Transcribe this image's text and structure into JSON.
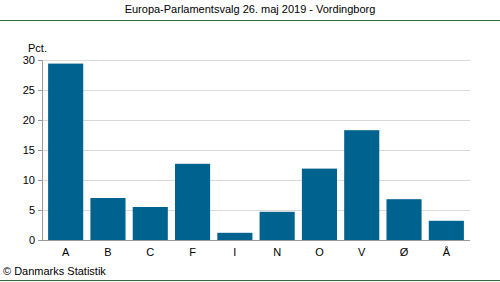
{
  "chart_data": {
    "type": "bar",
    "title": "Europa-Parlamentsvalg 26. maj 2019 - Vordingborg",
    "y_label": "Pct.",
    "source": "© Danmarks Statistik",
    "categories": [
      "A",
      "B",
      "C",
      "F",
      "I",
      "N",
      "O",
      "V",
      "Ø",
      "Å"
    ],
    "values": [
      29.4,
      7.0,
      5.5,
      12.7,
      1.2,
      4.7,
      11.9,
      18.3,
      6.8,
      3.2
    ],
    "color": "#00628f",
    "ylim": [
      0,
      30
    ],
    "yticks": [
      0,
      5,
      10,
      15,
      20,
      25,
      30
    ],
    "grid": true
  }
}
